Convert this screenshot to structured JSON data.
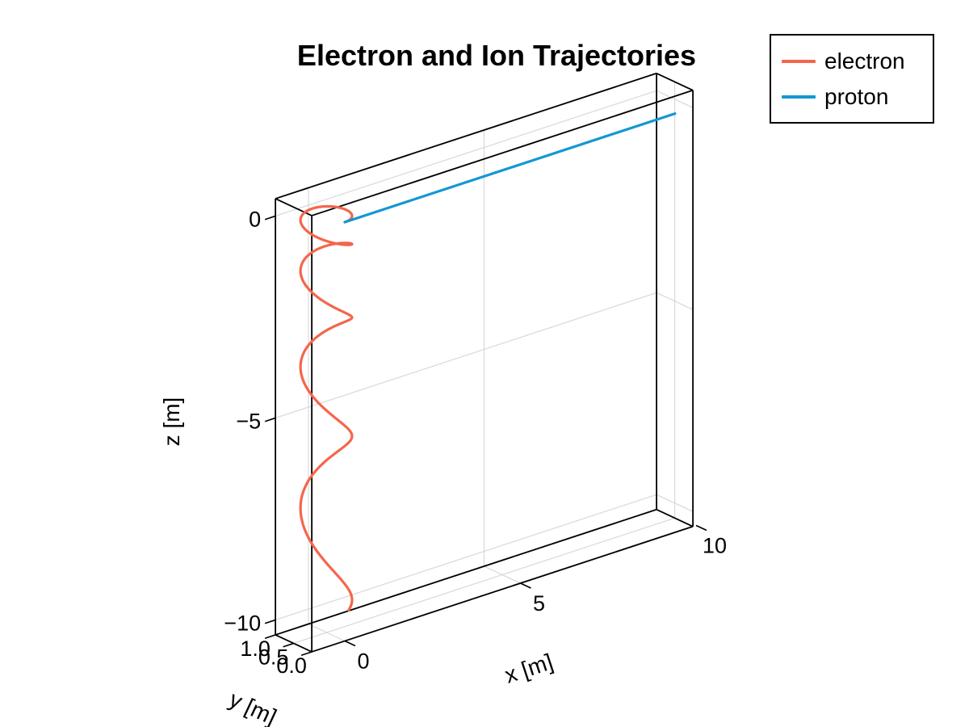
{
  "title": "Electron and Ion Trajectories",
  "legend": {
    "entries": [
      {
        "label": "electron",
        "color": "#F4664C"
      },
      {
        "label": "proton",
        "color": "#1497D2"
      }
    ]
  },
  "axes": {
    "x": {
      "label": "x [m]",
      "ticks": [
        "0",
        "5",
        "10"
      ],
      "tick_values": [
        0,
        5,
        10
      ]
    },
    "y": {
      "label": "y [m]",
      "ticks": [
        "1.0",
        "0.5",
        "0.0"
      ],
      "tick_values": [
        1.0,
        0.5,
        0.0
      ]
    },
    "z": {
      "label": "z [m]",
      "ticks": [
        "0",
        "−5",
        "−10"
      ],
      "tick_values": [
        0,
        -5,
        -10
      ]
    }
  },
  "chart_data": {
    "type": "line",
    "projection": "3d",
    "title": "Electron and Ion Trajectories",
    "xlabel": "x [m]",
    "ylabel": "y [m]",
    "zlabel": "z [m]",
    "xlim": [
      -0.94,
      9.91
    ],
    "ylim": [
      0,
      1
    ],
    "zlim": [
      -10.37,
      0.43
    ],
    "x_ticks": [
      0,
      5,
      10
    ],
    "y_ticks": [
      1.0,
      0.5,
      0.0
    ],
    "z_ticks": [
      0,
      -5,
      -10
    ],
    "x_grid": [
      0,
      5
    ],
    "y_grid": [
      0.5
    ],
    "z_grid": [
      0,
      -5,
      -10
    ],
    "grid": true,
    "legend_position": "top-right",
    "colors": {
      "grid": "#D8D8D8",
      "frame": "#000000"
    },
    "series": [
      {
        "name": "electron",
        "color": "#F4664C",
        "kind": "parametric-helix",
        "helix": {
          "r": 0.51,
          "turns": 4.205,
          "z_accel": -0.56
        },
        "equations": {
          "x": "r*sin(2*pi*t)",
          "y": "r*(1-cos(2*pi*t))",
          "z": "z_accel*t^2",
          "t": "0 .. 4.205"
        },
        "start_point": [
          0,
          0,
          0
        ],
        "end_point_approx": [
          0.49,
          0.36,
          -9.9
        ]
      },
      {
        "name": "proton",
        "color": "#1497D2",
        "kind": "segment",
        "points": [
          [
            0,
            0,
            0
          ],
          [
            9.4,
            0,
            0
          ]
        ]
      }
    ]
  }
}
